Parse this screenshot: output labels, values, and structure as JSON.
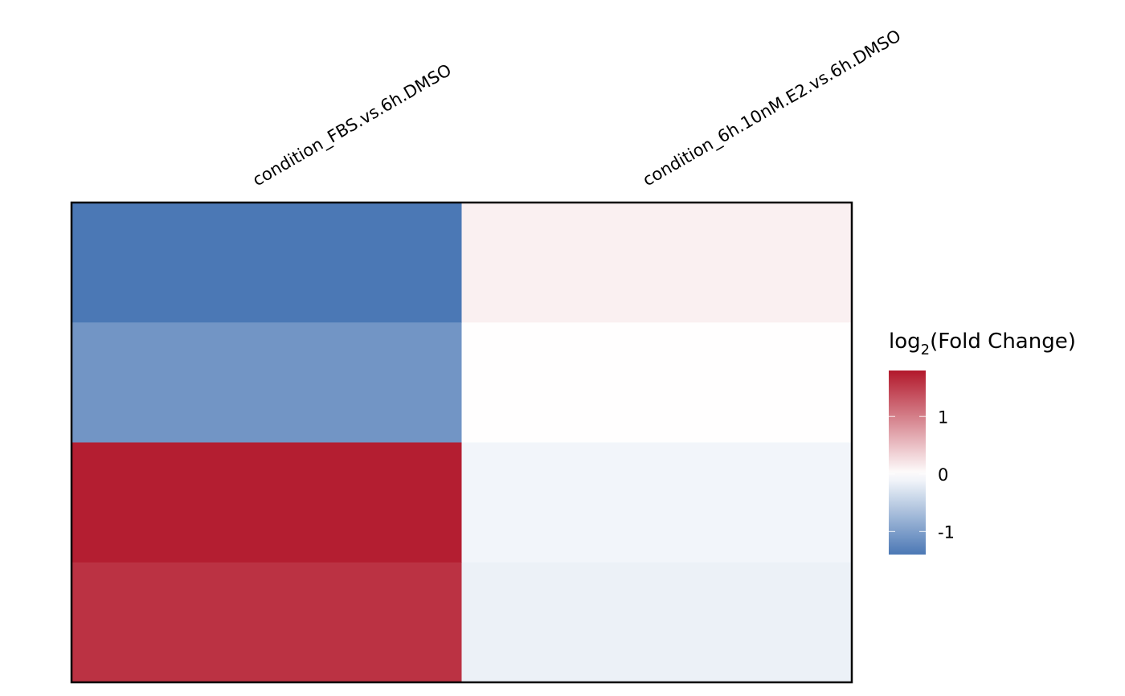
{
  "chart_data": {
    "type": "heatmap",
    "columns": [
      "condition_FBS.vs.6h.DMSO",
      "condition_6h.10nM.E2.vs.6h.DMSO"
    ],
    "rows": [
      "",
      "",
      "",
      ""
    ],
    "values": [
      [
        -1.55,
        0.12
      ],
      [
        -1.1,
        0.01
      ],
      [
        1.75,
        -0.1
      ],
      [
        1.6,
        -0.15
      ]
    ],
    "colormap": {
      "low": "#4B78B5",
      "mid": "#FFFFFF",
      "high": "#B2182B",
      "min": -1.4,
      "max": 1.8
    },
    "legend": {
      "title_main": "log",
      "title_sub": "2",
      "title_rest": "(Fold Change)",
      "ticks": [
        {
          "value": 1,
          "label": "1"
        },
        {
          "value": 0,
          "label": "0"
        },
        {
          "value": -1,
          "label": "-1"
        }
      ],
      "placement": "right"
    },
    "border": true
  }
}
